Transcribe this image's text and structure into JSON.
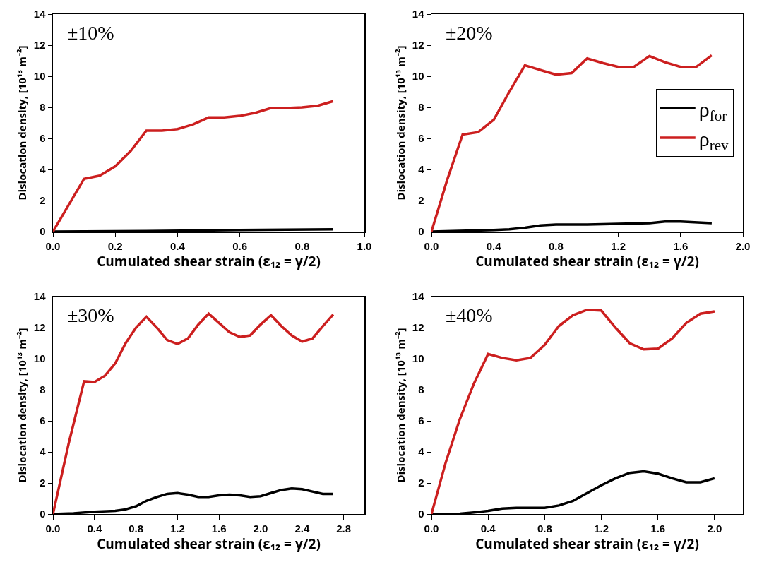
{
  "chart_data": [
    {
      "type": "line",
      "xlabel": "Cumulated shear strain (ε₁₂ = γ/2)",
      "ylabel": "Dislocation density, [10¹³ m⁻²]",
      "annotations": [
        "±10%"
      ],
      "xlim": [
        0,
        1.0
      ],
      "xticks": [
        {
          "value": 0,
          "label": "0.0"
        },
        0.2,
        0.4,
        0.6,
        0.8,
        {
          "value": 1,
          "label": "1.0"
        }
      ],
      "ylim": [
        0,
        14
      ],
      "yticks": [
        0,
        2,
        4,
        6,
        8,
        10,
        12,
        14
      ],
      "grid": false,
      "legend": false,
      "marker": "none",
      "line_style": "solid",
      "series": [
        {
          "color": "#000000",
          "x": [
            0,
            0.3,
            0.6,
            0.9
          ],
          "values": [
            0,
            0.03,
            0.1,
            0.15
          ]
        },
        {
          "color": "#cc1f1f",
          "x": [
            0,
            0.1,
            0.15,
            0.2,
            0.25,
            0.3,
            0.35,
            0.4,
            0.45,
            0.5,
            0.55,
            0.6,
            0.65,
            0.7,
            0.75,
            0.8,
            0.85,
            0.9
          ],
          "values": [
            0,
            3.4,
            3.6,
            4.2,
            5.2,
            6.5,
            6.5,
            6.6,
            6.9,
            7.35,
            7.35,
            7.45,
            7.65,
            7.95,
            7.95,
            8.0,
            8.1,
            8.4
          ]
        }
      ]
    },
    {
      "type": "line",
      "xlabel": "Cumulated shear strain (ε₁₂ = γ/2)",
      "ylabel": "Dislocation density, [10¹³ m⁻²]",
      "annotations": [
        "±20%"
      ],
      "xlim": [
        0,
        2.0
      ],
      "xticks": [
        {
          "value": 0,
          "label": "0.0"
        },
        0.4,
        0.8,
        1.2,
        1.6,
        {
          "value": 2,
          "label": "2.0"
        }
      ],
      "ylim": [
        0,
        14
      ],
      "yticks": [
        0,
        2,
        4,
        6,
        8,
        10,
        12,
        14
      ],
      "grid": false,
      "legend": "right",
      "marker": "none",
      "line_style": "solid",
      "series": [
        {
          "name": "ρ$_{for}$",
          "color": "#000000",
          "x": [
            0,
            0.4,
            0.5,
            0.6,
            0.7,
            0.8,
            1.0,
            1.2,
            1.4,
            1.5,
            1.6,
            1.8
          ],
          "values": [
            0,
            0.1,
            0.15,
            0.25,
            0.4,
            0.45,
            0.45,
            0.5,
            0.55,
            0.65,
            0.65,
            0.55
          ]
        },
        {
          "name": "ρ$_{rev}$",
          "color": "#cc1f1f",
          "x": [
            0,
            0.1,
            0.2,
            0.3,
            0.4,
            0.5,
            0.6,
            0.7,
            0.8,
            0.9,
            1.0,
            1.1,
            1.2,
            1.3,
            1.4,
            1.5,
            1.6,
            1.7,
            1.8
          ],
          "values": [
            0,
            3.3,
            6.25,
            6.4,
            7.2,
            9.0,
            10.7,
            10.4,
            10.1,
            10.2,
            11.15,
            10.85,
            10.6,
            10.6,
            11.3,
            10.9,
            10.6,
            10.6,
            11.35
          ]
        }
      ]
    },
    {
      "type": "line",
      "xlabel": "Cumulated shear strain (ε₁₂ = γ/2)",
      "ylabel": "Dislocation density, [10¹³ m⁻²]",
      "annotations": [
        "±30%"
      ],
      "xlim": [
        0,
        3.0
      ],
      "xticks": [
        {
          "value": 0,
          "label": "0.0"
        },
        0.4,
        0.8,
        1.2,
        1.6,
        {
          "value": 2,
          "label": "2.0"
        },
        2.4,
        2.8
      ],
      "ylim": [
        0,
        14
      ],
      "yticks": [
        0,
        2,
        4,
        6,
        8,
        10,
        12,
        14
      ],
      "grid": false,
      "legend": false,
      "marker": "none",
      "line_style": "solid",
      "series": [
        {
          "color": "#000000",
          "x": [
            0,
            0.2,
            0.4,
            0.6,
            0.7,
            0.8,
            0.9,
            1.0,
            1.1,
            1.2,
            1.3,
            1.4,
            1.5,
            1.6,
            1.7,
            1.8,
            1.9,
            2.0,
            2.1,
            2.2,
            2.3,
            2.4,
            2.5,
            2.6,
            2.7
          ],
          "values": [
            0,
            0.05,
            0.15,
            0.2,
            0.3,
            0.5,
            0.85,
            1.1,
            1.3,
            1.35,
            1.25,
            1.1,
            1.1,
            1.2,
            1.25,
            1.2,
            1.1,
            1.15,
            1.35,
            1.55,
            1.65,
            1.6,
            1.45,
            1.3,
            1.3
          ]
        },
        {
          "color": "#cc1f1f",
          "x": [
            0,
            0.15,
            0.3,
            0.4,
            0.5,
            0.6,
            0.7,
            0.8,
            0.9,
            1.0,
            1.1,
            1.2,
            1.3,
            1.4,
            1.5,
            1.6,
            1.7,
            1.8,
            1.9,
            2.0,
            2.1,
            2.2,
            2.3,
            2.4,
            2.5,
            2.6,
            2.7
          ],
          "values": [
            0,
            4.5,
            8.55,
            8.5,
            8.9,
            9.7,
            11.0,
            12.0,
            12.7,
            12.0,
            11.2,
            10.95,
            11.3,
            12.2,
            12.9,
            12.3,
            11.7,
            11.4,
            11.5,
            12.2,
            12.8,
            12.1,
            11.5,
            11.1,
            11.3,
            12.1,
            12.85
          ]
        }
      ]
    },
    {
      "type": "line",
      "xlabel": "Cumulated shear strain (ε₁₂ = γ/2)",
      "ylabel": "Dislocation density, [10¹³ m⁻²]",
      "annotations": [
        "±40%"
      ],
      "xlim": [
        0,
        2.2
      ],
      "xticks": [
        {
          "value": 0,
          "label": "0.0"
        },
        0.4,
        0.8,
        1.2,
        1.6,
        {
          "value": 2,
          "label": "2.0"
        }
      ],
      "ylim": [
        0,
        14
      ],
      "yticks": [
        0,
        2,
        4,
        6,
        8,
        10,
        12,
        14
      ],
      "grid": false,
      "legend": false,
      "marker": "none",
      "line_style": "solid",
      "series": [
        {
          "color": "#000000",
          "x": [
            0,
            0.2,
            0.3,
            0.4,
            0.5,
            0.6,
            0.8,
            0.9,
            1.0,
            1.1,
            1.2,
            1.3,
            1.4,
            1.5,
            1.6,
            1.7,
            1.8,
            1.9,
            2.0
          ],
          "values": [
            0,
            0.02,
            0.1,
            0.2,
            0.35,
            0.4,
            0.4,
            0.55,
            0.85,
            1.35,
            1.85,
            2.3,
            2.65,
            2.75,
            2.6,
            2.3,
            2.05,
            2.05,
            2.3
          ]
        },
        {
          "color": "#cc1f1f",
          "x": [
            0,
            0.1,
            0.2,
            0.3,
            0.4,
            0.5,
            0.6,
            0.7,
            0.8,
            0.9,
            1.0,
            1.1,
            1.2,
            1.3,
            1.4,
            1.5,
            1.6,
            1.7,
            1.8,
            1.9,
            2.0
          ],
          "values": [
            0,
            3.3,
            6.1,
            8.4,
            10.3,
            10.05,
            9.9,
            10.05,
            10.9,
            12.1,
            12.8,
            13.15,
            13.1,
            12.0,
            11.0,
            10.6,
            10.65,
            11.3,
            12.3,
            12.9,
            13.05
          ]
        }
      ]
    }
  ]
}
